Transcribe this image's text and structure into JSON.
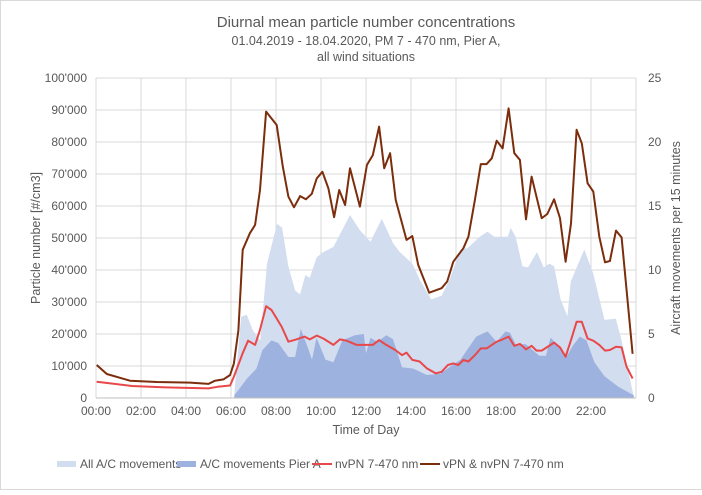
{
  "chart_data": {
    "type": "area+line",
    "title": "Diurnal mean particle number concentrations",
    "subtitle_lines": [
      "01.04.2019 - 18.04.2020, PM 7 - 470 nm,  Pier A,",
      "all wind situations"
    ],
    "xlabel": "Time of Day",
    "ylabel": "Particle number [#/cm3]",
    "y2label": "Aircraft movements per 15 minutes",
    "xlim": [
      0,
      24
    ],
    "ylim": [
      0,
      100000
    ],
    "y2lim": [
      0,
      25
    ],
    "x_ticks": [
      "00:00",
      "02:00",
      "04:00",
      "06:00",
      "08:00",
      "10:00",
      "12:00",
      "14:00",
      "16:00",
      "18:00",
      "20:00",
      "22:00"
    ],
    "y_ticks": [
      "0",
      "10'000",
      "20'000",
      "30'000",
      "40'000",
      "50'000",
      "60'000",
      "70'000",
      "80'000",
      "90'000",
      "100'000"
    ],
    "y2_ticks": [
      "0",
      "5",
      "10",
      "15",
      "20",
      "25"
    ],
    "grid": true,
    "legend_position": "bottom",
    "series": [
      {
        "name": "All A/C movements",
        "type": "area",
        "axis": "right",
        "color": "#d3ddf0",
        "x": [
          6.13,
          6.45,
          6.7,
          6.97,
          7.3,
          7.6,
          8.05,
          8.27,
          8.55,
          8.85,
          9.07,
          9.3,
          9.5,
          9.81,
          10.1,
          10.55,
          11.29,
          11.73,
          12.2,
          12.7,
          13.2,
          13.5,
          14.06,
          14.4,
          14.9,
          15.36,
          15.7,
          16.2,
          16.5,
          17.06,
          17.4,
          17.7,
          18.3,
          18.43,
          18.65,
          18.95,
          19.2,
          19.6,
          19.9,
          20.15,
          20.36,
          20.65,
          20.95,
          21.1,
          21.7,
          22.1,
          22.6,
          23.1,
          23.36,
          23.9
        ],
        "y": [
          0,
          6.35,
          6.5,
          5.3,
          4.5,
          10.5,
          13.6,
          13.3,
          10.3,
          8.4,
          8.1,
          9.6,
          9.4,
          11,
          11.4,
          11.8,
          14.3,
          13.1,
          12.2,
          14,
          12.1,
          11.4,
          10.5,
          9.2,
          7.7,
          8,
          9.2,
          11.6,
          11.7,
          12.6,
          13,
          12.6,
          12.6,
          13.3,
          12.6,
          10.3,
          10.2,
          11.4,
          10.2,
          10.5,
          10.3,
          7.7,
          6.4,
          9.1,
          11.6,
          9.7,
          6.1,
          6.2,
          4.5,
          0.1
        ]
      },
      {
        "name": "A/C movements Pier A",
        "type": "area",
        "axis": "right",
        "color": "#9db2de",
        "x": [
          6.15,
          6.7,
          7.13,
          7.4,
          7.8,
          8.1,
          8.55,
          8.85,
          9.1,
          9.4,
          9.6,
          9.8,
          10.2,
          10.55,
          10.95,
          11.5,
          11.9,
          12.0,
          12.2,
          12.5,
          12.9,
          13.2,
          13.6,
          14.1,
          14.7,
          15.3,
          15.7,
          16.2,
          16.9,
          17.4,
          17.8,
          18.2,
          18.4,
          18.65,
          19.1,
          19.7,
          20.0,
          20.2,
          20.6,
          20.9,
          21.2,
          21.5,
          21.8,
          22.15,
          22.6,
          23.2,
          23.9
        ],
        "y": [
          0.2,
          1.5,
          2.3,
          3.75,
          4.5,
          4.3,
          3.2,
          3.2,
          5.4,
          4.0,
          3.0,
          4.7,
          3.0,
          2.8,
          4.5,
          4.9,
          5.0,
          3.5,
          4.7,
          4.4,
          4.9,
          4.6,
          2.4,
          2.3,
          1.8,
          1.9,
          2.4,
          3.0,
          4.8,
          5.2,
          4.4,
          5.2,
          5.1,
          4.2,
          4.2,
          3.3,
          3.3,
          4.7,
          4.0,
          3.2,
          4.1,
          4.8,
          4.5,
          2.8,
          1.7,
          0.9,
          0.2
        ]
      },
      {
        "name": "nvPN 7-470 nm",
        "type": "line",
        "axis": "left",
        "color": "#e8484a",
        "x": [
          0.03,
          1.6,
          3.1,
          5.0,
          5.4,
          5.96,
          6.13,
          6.52,
          6.76,
          7.07,
          7.29,
          7.56,
          7.8,
          8.25,
          8.55,
          8.9,
          9.27,
          9.5,
          9.81,
          10.1,
          10.55,
          10.84,
          11.14,
          11.58,
          12.04,
          12.3,
          12.58,
          12.9,
          13.3,
          13.6,
          13.8,
          14.06,
          14.38,
          14.7,
          15.1,
          15.36,
          15.64,
          15.88,
          16.1,
          16.33,
          16.55,
          16.84,
          17.1,
          17.36,
          17.81,
          18.07,
          18.34,
          18.59,
          18.84,
          19.11,
          19.36,
          19.58,
          19.81,
          20.36,
          20.62,
          20.87,
          21.11,
          21.36,
          21.59,
          21.85,
          22.1,
          22.37,
          22.62,
          22.84,
          23.11,
          23.36,
          23.58,
          23.85
        ],
        "y": [
          5100,
          3750,
          3300,
          3000,
          3500,
          3900,
          6700,
          14000,
          17900,
          16600,
          21300,
          28700,
          27500,
          22300,
          17600,
          18300,
          19200,
          18300,
          19500,
          18600,
          16600,
          18300,
          17900,
          16600,
          16600,
          16600,
          18100,
          16600,
          15000,
          13400,
          14200,
          11900,
          11400,
          9300,
          7700,
          8200,
          10300,
          10800,
          10300,
          11900,
          11400,
          13400,
          15500,
          15500,
          17600,
          18300,
          19200,
          16300,
          16900,
          15200,
          16300,
          14800,
          14800,
          17300,
          15800,
          12900,
          18100,
          23800,
          23800,
          18600,
          17900,
          16600,
          14800,
          15000,
          16000,
          15800,
          9800,
          6100
        ]
      },
      {
        "name": "vPN & nvPN 7-470 nm",
        "type": "line",
        "axis": "left",
        "color": "#7b2d0c",
        "x": [
          0.03,
          0.48,
          1.51,
          2.7,
          4.18,
          5.0,
          5.29,
          5.66,
          5.96,
          6.13,
          6.33,
          6.52,
          6.84,
          7.07,
          7.29,
          7.56,
          8.03,
          8.3,
          8.55,
          8.8,
          9.07,
          9.33,
          9.59,
          9.81,
          10.06,
          10.33,
          10.58,
          10.81,
          11.07,
          11.29,
          11.73,
          12.04,
          12.3,
          12.58,
          12.81,
          13.07,
          13.32,
          13.8,
          14.06,
          14.32,
          14.81,
          15.36,
          15.61,
          15.88,
          16.33,
          16.55,
          16.84,
          17.1,
          17.36,
          17.59,
          17.81,
          18.07,
          18.34,
          18.59,
          18.84,
          19.11,
          19.36,
          19.81,
          20.06,
          20.36,
          20.62,
          20.87,
          21.11,
          21.36,
          21.59,
          21.85,
          22.1,
          22.37,
          22.62,
          22.84,
          23.11,
          23.36,
          23.85
        ],
        "y": [
          10300,
          7500,
          5400,
          5000,
          4800,
          4400,
          5400,
          5800,
          7200,
          10800,
          21200,
          46300,
          51500,
          54100,
          65000,
          89500,
          85300,
          72300,
          62900,
          59600,
          63100,
          62100,
          63800,
          68600,
          70700,
          65500,
          56500,
          65000,
          60300,
          71800,
          59800,
          72800,
          75900,
          84800,
          71800,
          76500,
          61900,
          49400,
          50600,
          41600,
          32900,
          34300,
          36400,
          42600,
          46800,
          50400,
          61900,
          73100,
          73100,
          74900,
          80400,
          78000,
          90500,
          76500,
          74400,
          55800,
          69200,
          56200,
          57500,
          62100,
          56200,
          42600,
          54600,
          83800,
          79600,
          67100,
          64500,
          50400,
          42400,
          42800,
          52300,
          50200,
          13800
        ]
      }
    ]
  }
}
